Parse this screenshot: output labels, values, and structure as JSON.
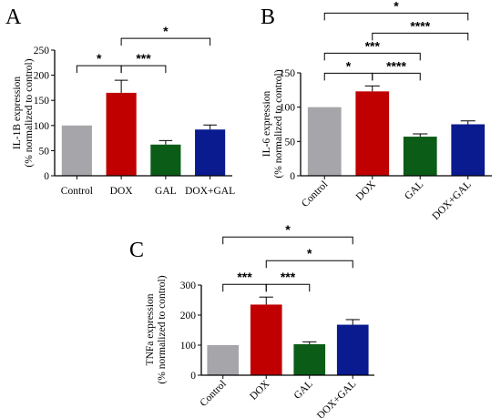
{
  "colors": {
    "Control": "#a6a6aa",
    "DOX": "#c00000",
    "GAL": "#0a5c16",
    "DOX+GAL": "#0a1a8f"
  },
  "chart_data": [
    {
      "panel": "A",
      "type": "bar",
      "ylabel_line1": "IL-1B expression",
      "ylabel_line2": "(% normalized to control)",
      "categories": [
        "Control",
        "DOX",
        "GAL",
        "DOX+GAL"
      ],
      "values": [
        100,
        165,
        62,
        92
      ],
      "errors": [
        0,
        25,
        8,
        9
      ],
      "ylim": [
        0,
        250
      ],
      "yticks": [
        0,
        50,
        100,
        150,
        200,
        250
      ],
      "rotate_labels": false,
      "significance": [
        {
          "from": 0,
          "to": 1,
          "label": "*",
          "level": 0
        },
        {
          "from": 1,
          "to": 2,
          "label": "***",
          "level": 0
        },
        {
          "from": 1,
          "to": 3,
          "label": "*",
          "level": 1
        }
      ]
    },
    {
      "panel": "B",
      "type": "bar",
      "ylabel_line1": "IL-6 expression",
      "ylabel_line2": "(% normalized to control)",
      "categories": [
        "Control",
        "DOX",
        "GAL",
        "DOX+GAL"
      ],
      "values": [
        100,
        123,
        57,
        75
      ],
      "errors": [
        0,
        8,
        4,
        5
      ],
      "ylim": [
        0,
        150
      ],
      "yticks": [
        0,
        50,
        100,
        150
      ],
      "rotate_labels": true,
      "significance": [
        {
          "from": 0,
          "to": 1,
          "label": "*",
          "level": 0
        },
        {
          "from": 1,
          "to": 2,
          "label": "****",
          "level": 0
        },
        {
          "from": 0,
          "to": 2,
          "label": "***",
          "level": 1
        },
        {
          "from": 1,
          "to": 3,
          "label": "****",
          "level": 2
        },
        {
          "from": 0,
          "to": 3,
          "label": "*",
          "level": 3
        }
      ]
    },
    {
      "panel": "C",
      "type": "bar",
      "ylabel_line1": "TNFa expression",
      "ylabel_line2": "(% normalized to control)",
      "categories": [
        "Control",
        "DOX",
        "GAL",
        "DOX+GAL"
      ],
      "values": [
        100,
        235,
        103,
        168
      ],
      "errors": [
        0,
        25,
        8,
        17
      ],
      "ylim": [
        0,
        300
      ],
      "yticks": [
        0,
        100,
        200,
        300
      ],
      "rotate_labels": true,
      "significance": [
        {
          "from": 0,
          "to": 1,
          "label": "***",
          "level": 0
        },
        {
          "from": 1,
          "to": 2,
          "label": "***",
          "level": 0
        },
        {
          "from": 1,
          "to": 3,
          "label": "*",
          "level": 1
        },
        {
          "from": 0,
          "to": 3,
          "label": "*",
          "level": 2
        }
      ]
    }
  ]
}
